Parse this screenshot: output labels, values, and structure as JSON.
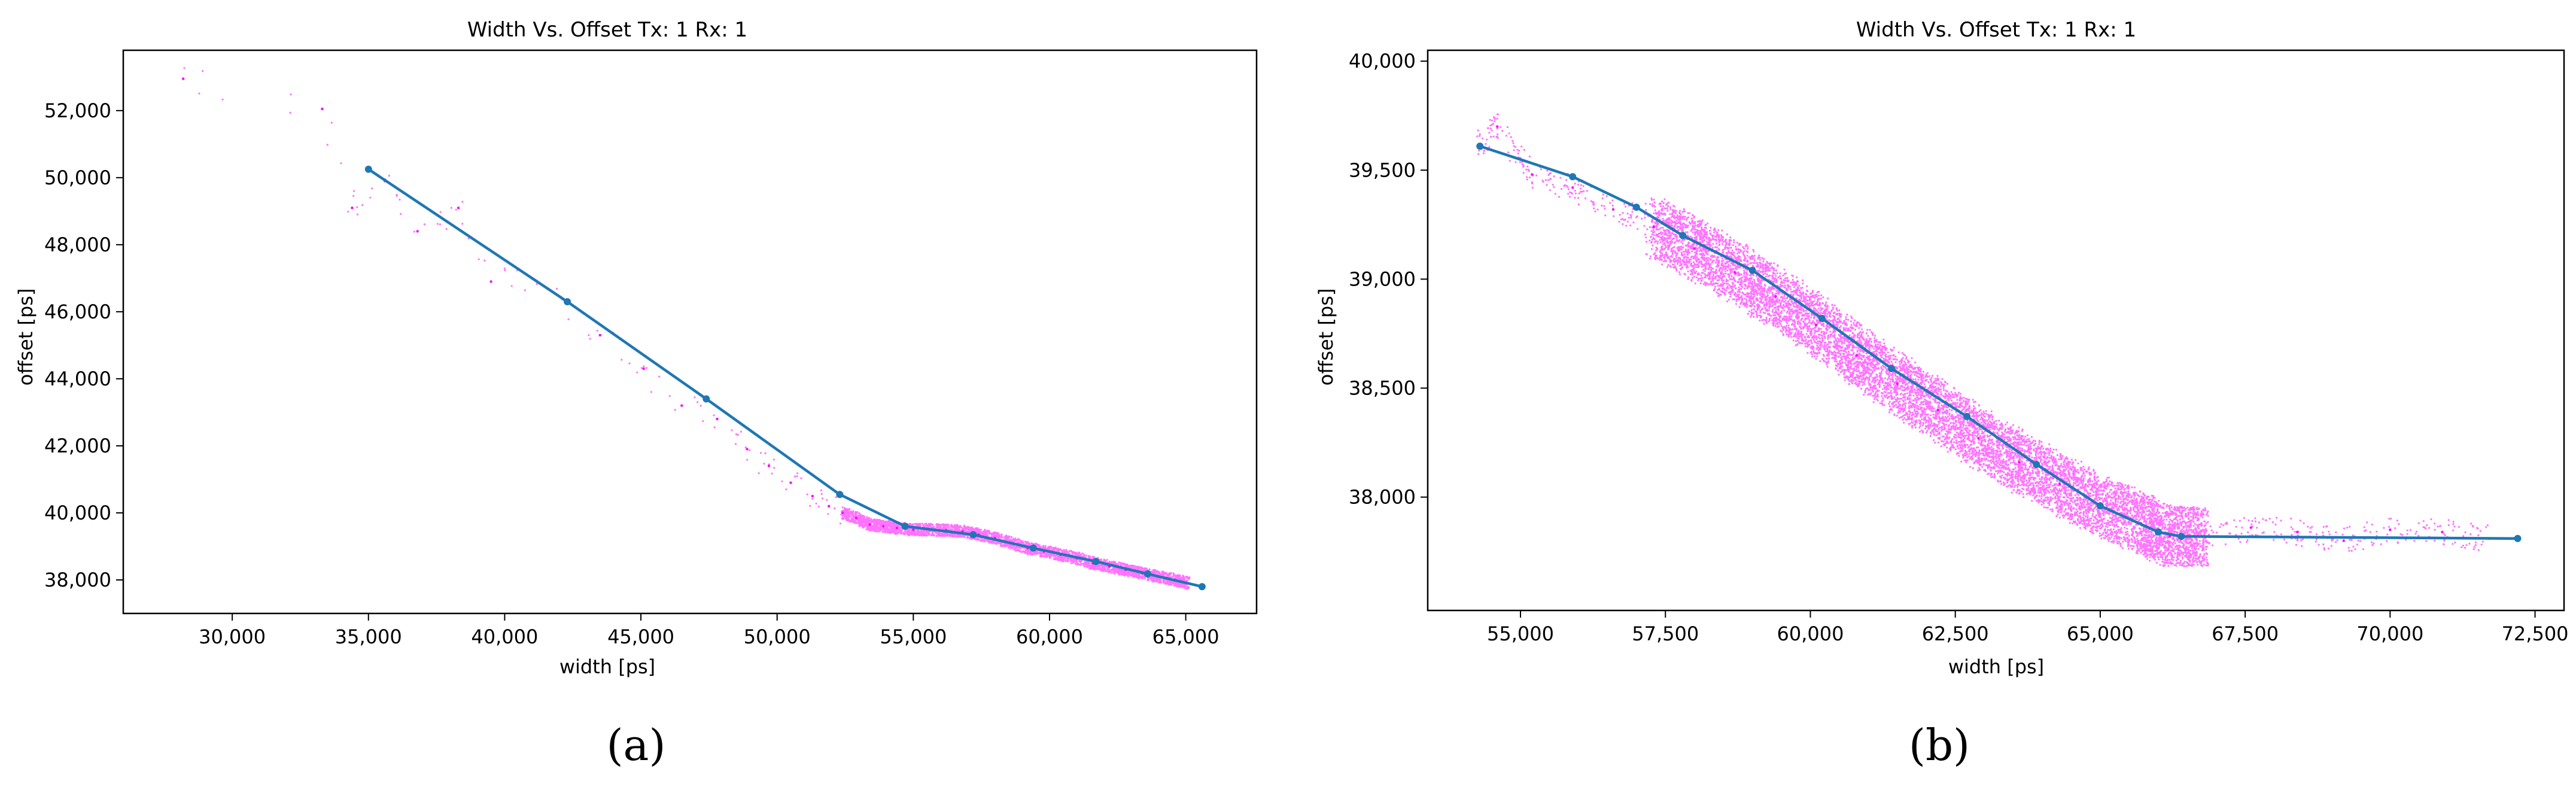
{
  "colors": {
    "scatter": "#ff00ff",
    "line": "#1f77b4",
    "axes": "#000000"
  },
  "chart_data": [
    {
      "type": "scatter",
      "panel_label": "(a)",
      "title": "Width Vs. Offset Tx: 1 Rx: 1",
      "xlabel": "width [ps]",
      "ylabel": "offset [ps]",
      "xlim": [
        26000,
        67600
      ],
      "ylim": [
        37000,
        53800
      ],
      "xticks": [
        30000,
        35000,
        40000,
        45000,
        50000,
        55000,
        60000,
        65000
      ],
      "xtick_labels": [
        "30,000",
        "35,000",
        "40,000",
        "45,000",
        "50,000",
        "55,000",
        "60,000",
        "65,000"
      ],
      "yticks": [
        38000,
        40000,
        42000,
        44000,
        46000,
        48000,
        50000,
        52000
      ],
      "ytick_labels": [
        "38,000",
        "40,000",
        "42,000",
        "44,000",
        "46,000",
        "48,000",
        "50,000",
        "52,000"
      ],
      "grid": false,
      "series": [
        {
          "kind": "scatter",
          "color": "magenta",
          "x": [
            28200,
            33300,
            34400,
            35600,
            36800,
            38300,
            39500,
            41000,
            43500,
            45100,
            46500,
            47800,
            48900,
            49700,
            50500,
            51300,
            51900,
            52400,
            52900,
            53400,
            53900,
            54400,
            55000,
            55600,
            56200,
            56800,
            57400,
            58000,
            58600,
            59200,
            59800,
            60400,
            61000,
            61600,
            62200,
            62800,
            63400,
            64000,
            64600,
            65100
          ],
          "y": [
            52950,
            52050,
            49100,
            49900,
            48400,
            49100,
            46900,
            47000,
            45300,
            44300,
            43200,
            42800,
            41900,
            41400,
            40900,
            40500,
            40200,
            40000,
            39850,
            39650,
            39600,
            39550,
            39500,
            39500,
            39480,
            39450,
            39350,
            39250,
            39100,
            38950,
            38850,
            38750,
            38650,
            38500,
            38400,
            38300,
            38200,
            38100,
            38000,
            37900
          ]
        },
        {
          "kind": "line",
          "color": "steelblue",
          "x": [
            35000,
            42300,
            47400,
            52300,
            54700,
            57200,
            59400,
            61700,
            63600,
            65600
          ],
          "y": [
            50250,
            46300,
            43400,
            40550,
            39600,
            39350,
            38950,
            38550,
            38180,
            37800
          ]
        }
      ]
    },
    {
      "type": "scatter",
      "panel_label": "(b)",
      "title": "Width Vs. Offset Tx: 1 Rx: 1",
      "xlabel": "width [ps]",
      "ylabel": "offset [ps]",
      "xlim": [
        53400,
        73000
      ],
      "ylim": [
        37480,
        40050
      ],
      "xticks": [
        55000,
        57500,
        60000,
        62500,
        65000,
        67500,
        70000,
        72500
      ],
      "xtick_labels": [
        "55,000",
        "57,500",
        "60,000",
        "62,500",
        "65,000",
        "67,500",
        "70,000",
        "72,500"
      ],
      "yticks": [
        38000,
        38500,
        39000,
        39500,
        40000
      ],
      "ytick_labels": [
        "38,000",
        "38,500",
        "39,000",
        "39,500",
        "40,000"
      ],
      "grid": false,
      "series": [
        {
          "kind": "scatter",
          "color": "magenta",
          "x": [
            54300,
            54600,
            55200,
            55900,
            56600,
            57300,
            58000,
            58700,
            59400,
            60100,
            60800,
            61500,
            62200,
            62900,
            63600,
            64300,
            65000,
            65700,
            66200,
            66800,
            67600,
            68400,
            69200,
            70000,
            70900,
            71700
          ],
          "y": [
            39620,
            39700,
            39480,
            39420,
            39320,
            39240,
            39140,
            39030,
            38920,
            38790,
            38650,
            38520,
            38400,
            38270,
            38160,
            38060,
            37960,
            37880,
            37820,
            37820,
            37860,
            37840,
            37800,
            37850,
            37840,
            37810
          ]
        },
        {
          "kind": "line",
          "color": "steelblue",
          "x": [
            54300,
            55900,
            57000,
            57800,
            59000,
            60200,
            61400,
            62700,
            63900,
            65000,
            66000,
            66400,
            72200
          ],
          "y": [
            39610,
            39470,
            39330,
            39200,
            39040,
            38820,
            38590,
            38370,
            38150,
            37960,
            37840,
            37820,
            37810
          ]
        }
      ]
    }
  ]
}
